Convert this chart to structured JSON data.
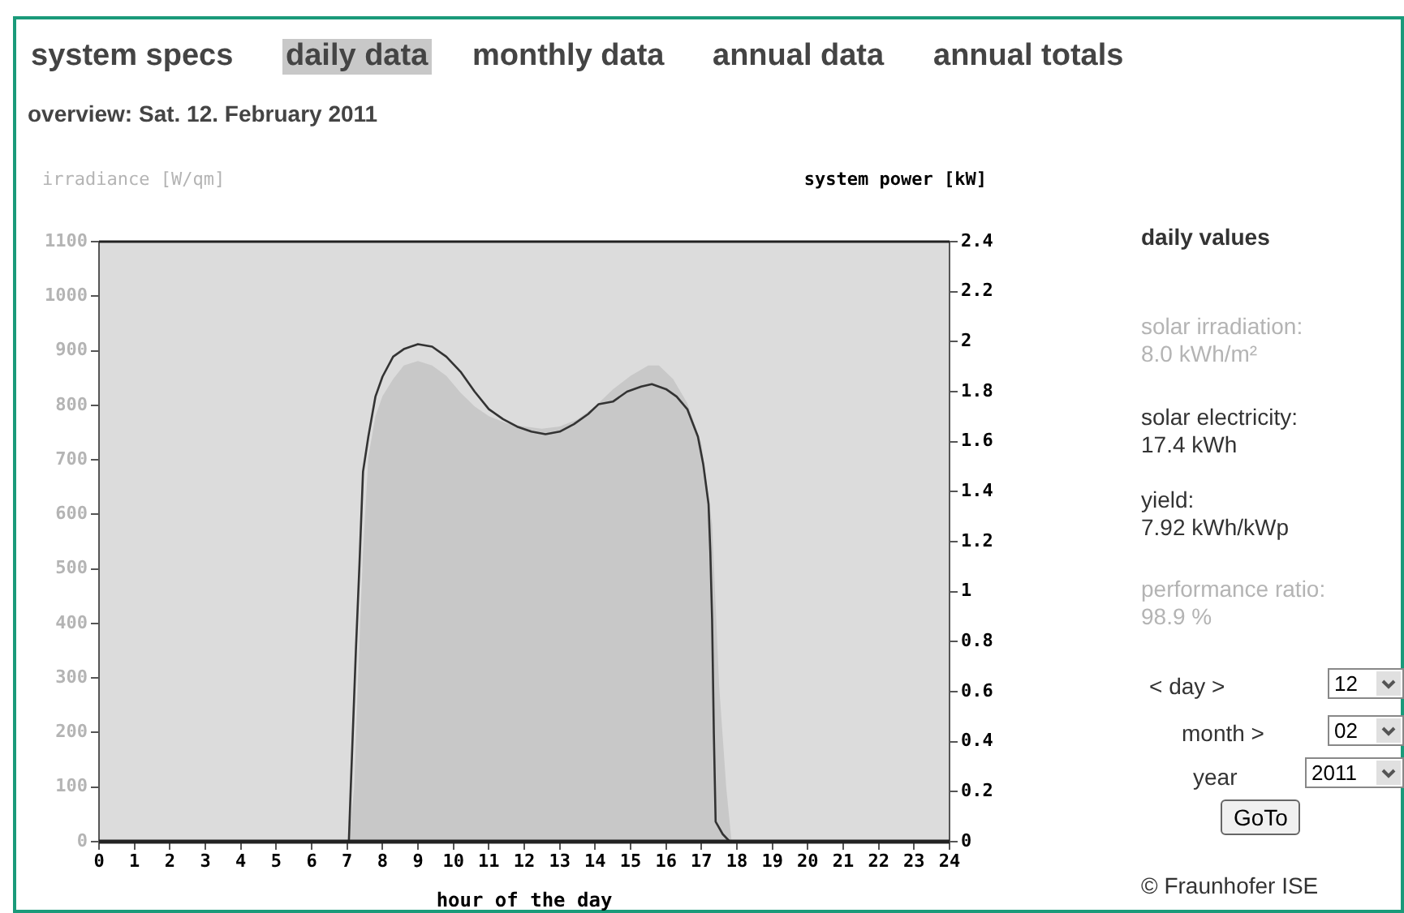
{
  "chart_data": {
    "type": "line",
    "title": "overview: Sat. 12. February 2011",
    "xlabel": "hour of the day",
    "ylabel": "irradiance [W/qm]",
    "y2label": "system power [kW]",
    "xlim": [
      0,
      24
    ],
    "xticks": [
      0,
      1,
      2,
      3,
      4,
      5,
      6,
      7,
      8,
      9,
      10,
      11,
      12,
      13,
      14,
      15,
      16,
      17,
      18,
      19,
      20,
      21,
      22,
      23,
      24
    ],
    "ylim": [
      0,
      1100
    ],
    "yticks": [
      0,
      100,
      200,
      300,
      400,
      500,
      600,
      700,
      800,
      900,
      1000,
      1100
    ],
    "y2lim": [
      0,
      2.4
    ],
    "y2ticks": [
      0,
      0.2,
      0.4,
      0.6,
      0.8,
      1,
      1.2,
      1.4,
      1.6,
      1.8,
      2,
      2.2,
      2.4
    ],
    "grid": false,
    "legend": false,
    "series": [
      {
        "type": "area",
        "color": "#c8c8c8",
        "x": [
          0,
          7.05,
          7.2,
          7.3,
          7.45,
          7.6,
          7.8,
          8.0,
          8.3,
          8.6,
          9.0,
          9.4,
          9.8,
          10.2,
          10.6,
          11.0,
          11.5,
          12.0,
          12.5,
          13.0,
          13.5,
          14.0,
          14.5,
          15.0,
          15.5,
          15.8,
          16.2,
          16.6,
          17.0,
          17.3,
          17.5,
          17.7,
          17.85,
          24
        ],
        "values": [
          0,
          0,
          99,
          285,
          532,
          705,
          780,
          817,
          848,
          873,
          881,
          873,
          854,
          823,
          798,
          780,
          767,
          761,
          757,
          761,
          774,
          798,
          829,
          854,
          873,
          873,
          848,
          804,
          730,
          582,
          285,
          99,
          0,
          0
        ]
      },
      {
        "color": "#333333",
        "axis": "y2",
        "x": [
          0,
          7.05,
          7.1,
          7.25,
          7.35,
          7.45,
          7.6,
          7.8,
          8.0,
          8.3,
          8.6,
          9.0,
          9.4,
          9.8,
          10.2,
          10.6,
          11.0,
          11.4,
          11.8,
          12.2,
          12.6,
          13.0,
          13.4,
          13.8,
          14.1,
          14.5,
          14.9,
          15.3,
          15.6,
          16.0,
          16.3,
          16.6,
          16.9,
          17.05,
          17.2,
          17.25,
          17.3,
          17.35,
          17.4,
          17.6,
          17.8,
          24
        ],
        "values": [
          0,
          0,
          0.2,
          0.77,
          1.11,
          1.48,
          1.62,
          1.78,
          1.86,
          1.94,
          1.97,
          1.99,
          1.98,
          1.94,
          1.88,
          1.8,
          1.73,
          1.69,
          1.66,
          1.64,
          1.63,
          1.64,
          1.67,
          1.71,
          1.75,
          1.76,
          1.8,
          1.82,
          1.83,
          1.81,
          1.78,
          1.73,
          1.62,
          1.51,
          1.35,
          1.16,
          0.89,
          0.43,
          0.08,
          0.03,
          0,
          0
        ]
      }
    ],
    "annotations": [
      "system specs",
      "daily data",
      "monthly data",
      "annual data",
      "annual totals",
      "daily values",
      "solar irradiation:\n8.0 kWh/m²",
      "solar electricity:\n17.4 kWh",
      "yield:\n7.92 kWh/kWp",
      "performance ratio:\n98.9 %",
      "<  day  >",
      "12",
      "month >",
      "02",
      "year",
      "2011",
      "GoTo",
      "© Fraunhofer ISE"
    ]
  }
}
